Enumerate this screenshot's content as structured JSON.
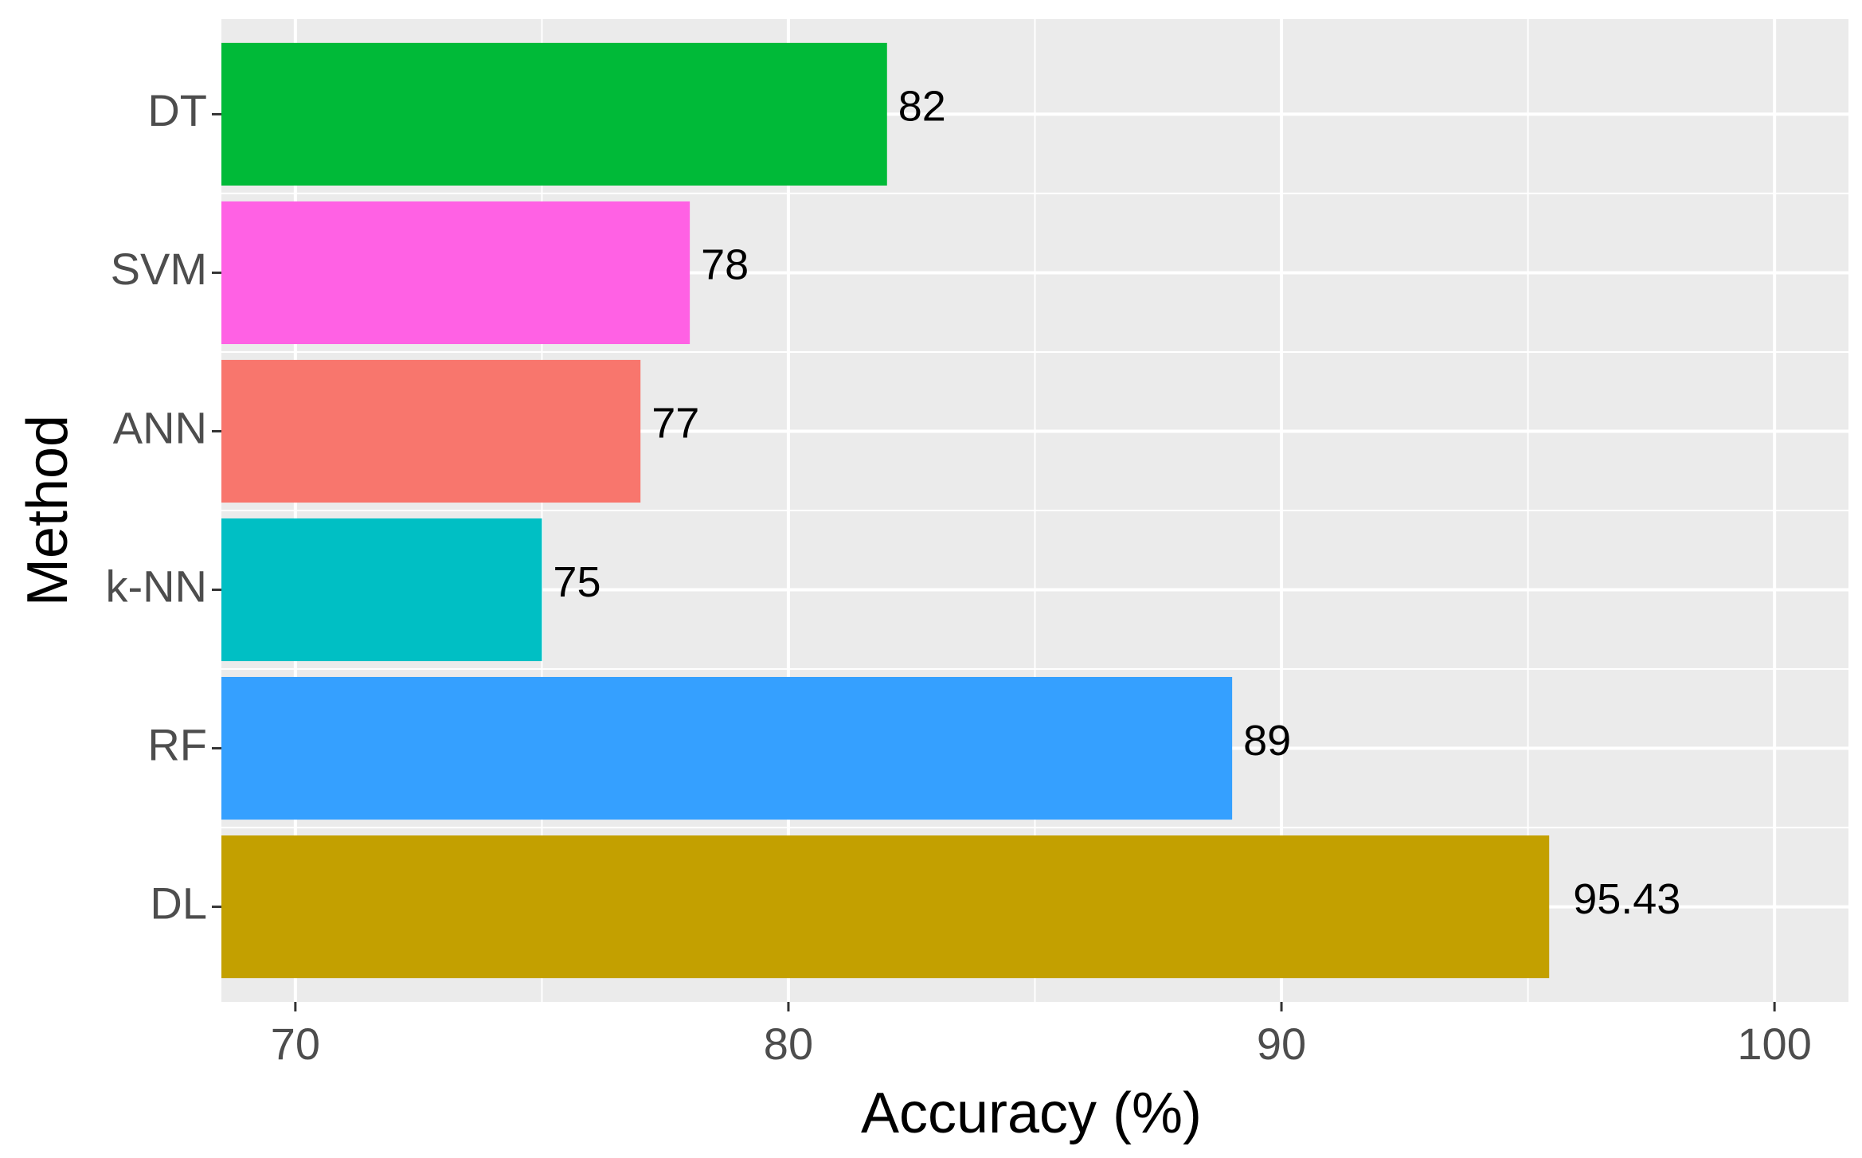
{
  "chart_data": {
    "type": "bar",
    "orientation": "horizontal",
    "categories": [
      "DT",
      "SVM",
      "ANN",
      "k-NN",
      "RF",
      "DL"
    ],
    "values": [
      82,
      78,
      77,
      75,
      89,
      95.43
    ],
    "value_labels": [
      "82",
      "78",
      "77",
      "75",
      "89",
      "95.43"
    ],
    "colors": [
      "#00BA38",
      "#FF61E4",
      "#F8766D",
      "#00BFC4",
      "#35A0FF",
      "#C3A000"
    ],
    "xlabel": "Accuracy (%)",
    "ylabel": "Method",
    "xlim": [
      68.5,
      101.5
    ],
    "xticks": [
      70,
      80,
      90,
      100
    ],
    "xtick_labels": [
      "70",
      "80",
      "90",
      "100"
    ],
    "grid": true,
    "legend": "none"
  }
}
